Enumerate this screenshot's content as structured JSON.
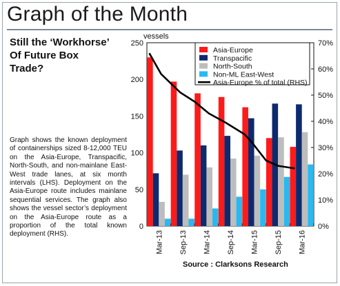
{
  "header": {
    "title": "Graph of the Month"
  },
  "headline": {
    "line1": "Still the ‘Workhorse’",
    "line2": "Of Future Box",
    "line3": "Trade?"
  },
  "description": "Graph shows the known deployment of containerships sized 8-12,000 TEU on the Asia-Europe, Transpacific, North-South, and non-mainlane East-West trade lanes, at six month intervals (LHS). Deployment on the Asia-Europe route includes mainlane sequential services. The graph also shows the vessel sector’s deployment on the Asia-Europe route as a proportion of the total known deployment (RHS).",
  "source": "Source : Clarksons Research",
  "colors": {
    "asia_europe": "#ff1a1a",
    "transpacific": "#0e2a6e",
    "north_south": "#bdbdbd",
    "non_ml": "#2ab8f0",
    "line": "#000000"
  },
  "chart_data": {
    "type": "bar",
    "ylabel": "vessels",
    "ylim": [
      0,
      250
    ],
    "yticks": [
      "0",
      "50",
      "100",
      "150",
      "200",
      "250"
    ],
    "y2lim": [
      0,
      70
    ],
    "y2ticks": [
      "0%",
      "10%",
      "20%",
      "30%",
      "40%",
      "50%",
      "60%",
      "70%"
    ],
    "categories": [
      "Mar-13",
      "Sep-13",
      "Mar-14",
      "Sep-14",
      "Mar-15",
      "Sep-15",
      "Mar-16"
    ],
    "series": [
      {
        "name": "Asia-Europe",
        "values": [
          230,
          197,
          181,
          176,
          162,
          120,
          108
        ]
      },
      {
        "name": "Transpacific",
        "values": [
          72,
          103,
          110,
          123,
          147,
          167,
          166
        ]
      },
      {
        "name": "North-South",
        "values": [
          33,
          70,
          80,
          92,
          96,
          121,
          128
        ]
      },
      {
        "name": "Non-ML East-West",
        "values": [
          10,
          10,
          24,
          40,
          50,
          67,
          84
        ]
      }
    ],
    "line_series": {
      "name": "Asia-Europe % of total (RHS)",
      "axis": "right",
      "points": [
        {
          "t": 0.1,
          "v": 66
        },
        {
          "t": 0.6,
          "v": 58
        },
        {
          "t": 1.4,
          "v": 51
        },
        {
          "t": 2.0,
          "v": 47.5
        },
        {
          "t": 2.6,
          "v": 43
        },
        {
          "t": 3.3,
          "v": 39.5
        },
        {
          "t": 4.1,
          "v": 35
        },
        {
          "t": 4.4,
          "v": 32
        },
        {
          "t": 5.0,
          "v": 25
        },
        {
          "t": 5.5,
          "v": 23
        },
        {
          "t": 6.2,
          "v": 22
        }
      ]
    },
    "legend": "top-right"
  }
}
